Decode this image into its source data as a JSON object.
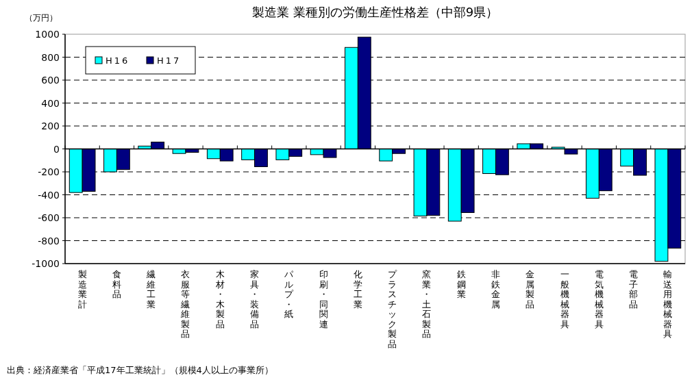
{
  "chart_data": {
    "type": "bar",
    "title": "製造業 業種別の労働生産性格差（中部9県）",
    "ylabel": "（万円）",
    "categories": [
      "製造業計",
      "食料品",
      "繊維工業",
      "衣服等繊維製品",
      "木材・木製品",
      "家具・装備品",
      "パルプ・紙",
      "印刷・同関連",
      "化学工業",
      "プラスチック製品",
      "窯業・土石製品",
      "鉄鋼業",
      "非鉄金属",
      "金属製品",
      "一般機械器具",
      "電気機械器具",
      "電子部品",
      "輸送用機械器具"
    ],
    "series": [
      {
        "name": "H16",
        "color": "#00ffff",
        "values": [
          -380,
          -200,
          25,
          -40,
          -85,
          -95,
          -95,
          -50,
          885,
          -105,
          -585,
          -630,
          -215,
          45,
          15,
          -430,
          -150,
          -980
        ]
      },
      {
        "name": "H17",
        "color": "#000080",
        "values": [
          -370,
          -180,
          60,
          -30,
          -105,
          -155,
          -65,
          -75,
          975,
          -40,
          -580,
          -555,
          -225,
          45,
          -45,
          -365,
          -230,
          -865
        ]
      }
    ],
    "ylim": [
      -1000,
      1000
    ],
    "yticks": [
      -1000,
      -800,
      -600,
      -400,
      -200,
      0,
      200,
      400,
      600,
      800,
      1000
    ],
    "grid": "y",
    "legend": "top left",
    "annotations": [
      "出典：経済産業省「平成17年工業統計」（規模4人以上の事業所）"
    ]
  }
}
